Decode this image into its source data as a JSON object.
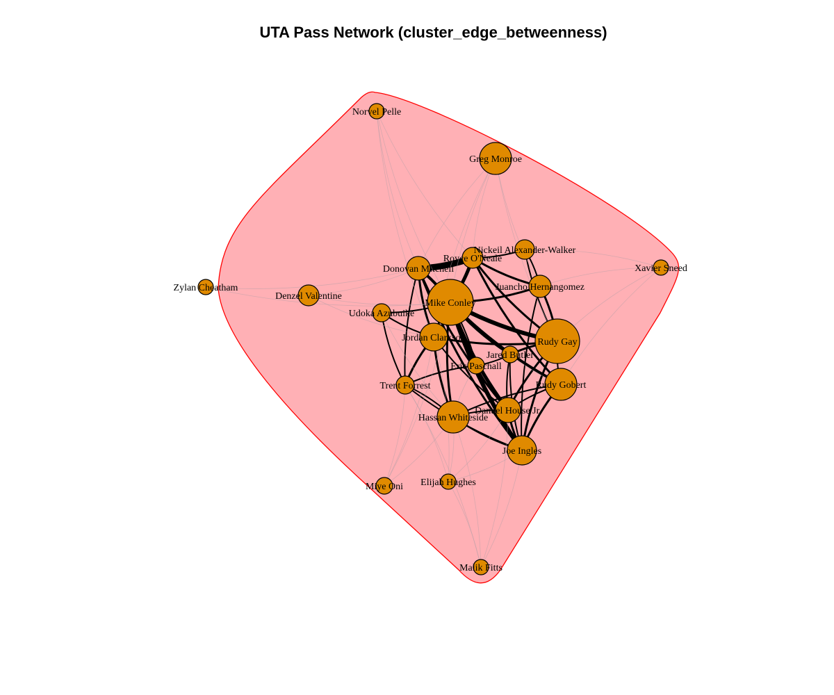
{
  "title": "UTA Pass Network (cluster_edge_betweenness)",
  "colors": {
    "node_fill": "#e08a00",
    "node_stroke": "#000000",
    "cluster_fill": "#ffb0b5",
    "cluster_stroke": "#ff0000",
    "edge_strong": "#000000",
    "edge_faint": "#b8a0a8"
  },
  "nodes": [
    {
      "id": "norvel",
      "label": "Norvel Pelle",
      "size": 11
    },
    {
      "id": "greg",
      "label": "Greg Monroe",
      "size": 23
    },
    {
      "id": "nickeil",
      "label": "Nickeil Alexander-Walker",
      "size": 14
    },
    {
      "id": "royce",
      "label": "Royce O'Neale",
      "size": 15
    },
    {
      "id": "xavier",
      "label": "Xavier Sneed",
      "size": 11
    },
    {
      "id": "donovan",
      "label": "Donovan Mitchell",
      "size": 17
    },
    {
      "id": "juancho",
      "label": "Juancho Hernangomez",
      "size": 16
    },
    {
      "id": "zylan",
      "label": "Zylan Cheatham",
      "size": 11
    },
    {
      "id": "denzel",
      "label": "Denzel Valentine",
      "size": 15
    },
    {
      "id": "mike",
      "label": "Mike Conley",
      "size": 33
    },
    {
      "id": "udoka",
      "label": "Udoka Azubuike",
      "size": 13
    },
    {
      "id": "rudygay",
      "label": "Rudy Gay",
      "size": 32
    },
    {
      "id": "jordan",
      "label": "Jordan Clarkson",
      "size": 20
    },
    {
      "id": "jared",
      "label": "Jared Butler",
      "size": 12
    },
    {
      "id": "eric",
      "label": "Eric Paschall",
      "size": 12
    },
    {
      "id": "trent",
      "label": "Trent Forrest",
      "size": 13
    },
    {
      "id": "gobert",
      "label": "Rudy Gobert",
      "size": 23
    },
    {
      "id": "danuel",
      "label": "Danuel House Jr.",
      "size": 18
    },
    {
      "id": "hassan",
      "label": "Hassan Whiteside",
      "size": 23
    },
    {
      "id": "joe",
      "label": "Joe Ingles",
      "size": 21
    },
    {
      "id": "miye",
      "label": "Miye Oni",
      "size": 12
    },
    {
      "id": "elijah",
      "label": "Elijah Hughes",
      "size": 11
    },
    {
      "id": "malik",
      "label": "Malik Fitts",
      "size": 11
    }
  ],
  "edges": [
    {
      "s": "donovan",
      "t": "royce",
      "w": 9
    },
    {
      "s": "mike",
      "t": "rudygay",
      "w": 6
    },
    {
      "s": "mike",
      "t": "royce",
      "w": 5
    },
    {
      "s": "mike",
      "t": "donovan",
      "w": 4
    },
    {
      "s": "mike",
      "t": "joe",
      "w": 6
    },
    {
      "s": "mike",
      "t": "gobert",
      "w": 4
    },
    {
      "s": "mike",
      "t": "danuel",
      "w": 5
    },
    {
      "s": "mike",
      "t": "hassan",
      "w": 3
    },
    {
      "s": "mike",
      "t": "jordan",
      "w": 3
    },
    {
      "s": "mike",
      "t": "juancho",
      "w": 3
    },
    {
      "s": "mike",
      "t": "jared",
      "w": 3
    },
    {
      "s": "royce",
      "t": "rudygay",
      "w": 3
    },
    {
      "s": "royce",
      "t": "gobert",
      "w": 3
    },
    {
      "s": "royce",
      "t": "juancho",
      "w": 3
    },
    {
      "s": "royce",
      "t": "nickeil",
      "w": 2
    },
    {
      "s": "donovan",
      "t": "jordan",
      "w": 3
    },
    {
      "s": "donovan",
      "t": "danuel",
      "w": 3
    },
    {
      "s": "donovan",
      "t": "joe",
      "w": 3
    },
    {
      "s": "donovan",
      "t": "trent",
      "w": 2
    },
    {
      "s": "jordan",
      "t": "rudygay",
      "w": 3
    },
    {
      "s": "jordan",
      "t": "trent",
      "w": 3
    },
    {
      "s": "jordan",
      "t": "hassan",
      "w": 3
    },
    {
      "s": "jordan",
      "t": "danuel",
      "w": 2
    },
    {
      "s": "rudygay",
      "t": "joe",
      "w": 3
    },
    {
      "s": "rudygay",
      "t": "danuel",
      "w": 3
    },
    {
      "s": "rudygay",
      "t": "juancho",
      "w": 3
    },
    {
      "s": "rudygay",
      "t": "jared",
      "w": 3
    },
    {
      "s": "rudygay",
      "t": "gobert",
      "w": 2
    },
    {
      "s": "gobert",
      "t": "joe",
      "w": 3
    },
    {
      "s": "gobert",
      "t": "danuel",
      "w": 2
    },
    {
      "s": "gobert",
      "t": "hassan",
      "w": 2
    },
    {
      "s": "danuel",
      "t": "joe",
      "w": 3
    },
    {
      "s": "danuel",
      "t": "hassan",
      "w": 2
    },
    {
      "s": "hassan",
      "t": "joe",
      "w": 2
    },
    {
      "s": "hassan",
      "t": "trent",
      "w": 2
    },
    {
      "s": "eric",
      "t": "mike",
      "w": 2
    },
    {
      "s": "eric",
      "t": "jared",
      "w": 2
    },
    {
      "s": "eric",
      "t": "danuel",
      "w": 2
    },
    {
      "s": "eric",
      "t": "trent",
      "w": 2
    },
    {
      "s": "udoka",
      "t": "jordan",
      "w": 2
    },
    {
      "s": "udoka",
      "t": "mike",
      "w": 2
    },
    {
      "s": "udoka",
      "t": "trent",
      "w": 2
    },
    {
      "s": "juancho",
      "t": "joe",
      "w": 2
    },
    {
      "s": "juancho",
      "t": "nickeil",
      "w": 2
    },
    {
      "s": "nickeil",
      "t": "rudygay",
      "w": 2
    },
    {
      "s": "trent",
      "t": "joe",
      "w": 2
    },
    {
      "s": "jared",
      "t": "joe",
      "w": 2
    },
    {
      "s": "jared",
      "t": "danuel",
      "w": 2
    },
    {
      "s": "greg",
      "t": "mike",
      "w": 0.5
    },
    {
      "s": "greg",
      "t": "royce",
      "w": 0.5
    },
    {
      "s": "greg",
      "t": "donovan",
      "w": 0.5
    },
    {
      "s": "greg",
      "t": "rudygay",
      "w": 0.5
    },
    {
      "s": "greg",
      "t": "juancho",
      "w": 0.5
    },
    {
      "s": "greg",
      "t": "jordan",
      "w": 0.5
    },
    {
      "s": "norvel",
      "t": "mike",
      "w": 0.5
    },
    {
      "s": "norvel",
      "t": "donovan",
      "w": 0.5
    },
    {
      "s": "norvel",
      "t": "royce",
      "w": 0.5
    },
    {
      "s": "norvel",
      "t": "jordan",
      "w": 0.5
    },
    {
      "s": "xavier",
      "t": "rudygay",
      "w": 0.5
    },
    {
      "s": "xavier",
      "t": "juancho",
      "w": 0.5
    },
    {
      "s": "xavier",
      "t": "nickeil",
      "w": 0.5
    },
    {
      "s": "xavier",
      "t": "gobert",
      "w": 0.5
    },
    {
      "s": "zylan",
      "t": "mike",
      "w": 0.5
    },
    {
      "s": "zylan",
      "t": "donovan",
      "w": 0.5
    },
    {
      "s": "denzel",
      "t": "mike",
      "w": 0.5
    },
    {
      "s": "denzel",
      "t": "donovan",
      "w": 0.5
    },
    {
      "s": "denzel",
      "t": "jordan",
      "w": 0.5
    },
    {
      "s": "miye",
      "t": "trent",
      "w": 0.5
    },
    {
      "s": "miye",
      "t": "hassan",
      "w": 0.5
    },
    {
      "s": "miye",
      "t": "jordan",
      "w": 0.5
    },
    {
      "s": "miye",
      "t": "mike",
      "w": 0.5
    },
    {
      "s": "elijah",
      "t": "hassan",
      "w": 0.5
    },
    {
      "s": "elijah",
      "t": "trent",
      "w": 0.5
    },
    {
      "s": "elijah",
      "t": "danuel",
      "w": 0.5
    },
    {
      "s": "elijah",
      "t": "joe",
      "w": 0.5
    },
    {
      "s": "elijah",
      "t": "jordan",
      "w": 0.5
    },
    {
      "s": "malik",
      "t": "joe",
      "w": 0.5
    },
    {
      "s": "malik",
      "t": "hassan",
      "w": 0.5
    },
    {
      "s": "malik",
      "t": "trent",
      "w": 0.5
    },
    {
      "s": "malik",
      "t": "danuel",
      "w": 0.5
    },
    {
      "s": "malik",
      "t": "elijah",
      "w": 0.5
    },
    {
      "s": "udoka",
      "t": "hassan",
      "w": 0.5
    },
    {
      "s": "eric",
      "t": "hassan",
      "w": 0.5
    },
    {
      "s": "jared",
      "t": "gobert",
      "w": 0.5
    }
  ]
}
